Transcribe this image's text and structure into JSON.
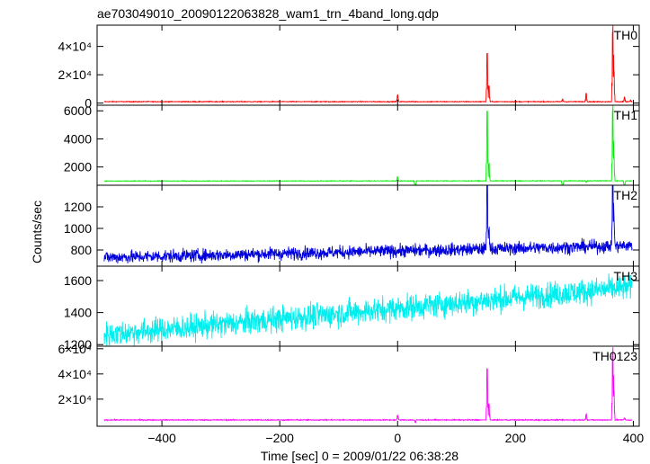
{
  "chart_data": {
    "type": "line",
    "title": "ae703049010_20090122063828_wam1_trn_4band_long.qdp",
    "xlabel": "Time [sec] 0 = 2009/01/22 06:38:28",
    "ylabel": "Counts/sec",
    "xlim": [
      -510,
      410
    ],
    "x_ticks": [
      {
        "value": -400,
        "label": "−400"
      },
      {
        "value": -200,
        "label": "−200"
      },
      {
        "value": 0,
        "label": "0"
      },
      {
        "value": 200,
        "label": "200"
      },
      {
        "value": 400,
        "label": "400"
      }
    ],
    "panels": [
      {
        "name": "TH0",
        "color": "#ff0000",
        "ylim": [
          -1500,
          55000
        ],
        "yticks": [
          {
            "value": 0,
            "label": "0"
          },
          {
            "value": 20000,
            "label": "2×10⁴"
          },
          {
            "value": 40000,
            "label": "4×10⁴"
          }
        ],
        "baseline": 1000,
        "trend": 0,
        "noise": 150,
        "peaks": [
          [
            0,
            5500
          ],
          [
            30,
            900
          ],
          [
            152,
            35000
          ],
          [
            155,
            12000
          ],
          [
            280,
            2500
          ],
          [
            320,
            6500
          ],
          [
            365,
            50000
          ],
          [
            367,
            22000
          ],
          [
            385,
            4000
          ],
          [
            395,
            2000
          ]
        ]
      },
      {
        "name": "TH1",
        "color": "#00ee00",
        "ylim": [
          700,
          6400
        ],
        "yticks": [
          {
            "value": 2000,
            "label": "2000"
          },
          {
            "value": 4000,
            "label": "4000"
          },
          {
            "value": 6000,
            "label": "6000"
          }
        ],
        "baseline": 1000,
        "trend": 15,
        "noise": 12,
        "peaks": [
          [
            0,
            1280
          ],
          [
            30,
            110
          ],
          [
            152,
            5950
          ],
          [
            155,
            2200
          ],
          [
            280,
            200
          ],
          [
            320,
            900
          ],
          [
            365,
            5950
          ],
          [
            367,
            2600
          ],
          [
            385,
            300
          ]
        ]
      },
      {
        "name": "TH2",
        "color": "#0000dd",
        "ylim": [
          650,
          1400
        ],
        "yticks": [
          {
            "value": 800,
            "label": "800"
          },
          {
            "value": 1000,
            "label": "1000"
          },
          {
            "value": 1200,
            "label": "1200"
          }
        ],
        "baseline": 730,
        "trend": 110,
        "noise": 30,
        "peaks": [
          [
            152,
            1400
          ],
          [
            155,
            950
          ],
          [
            365,
            1400
          ],
          [
            367,
            1000
          ]
        ]
      },
      {
        "name": "TH3",
        "color": "#00eeee",
        "ylim": [
          1190,
          1690
        ],
        "yticks": [
          {
            "value": 1200,
            "label": "1200"
          },
          {
            "value": 1400,
            "label": "1400"
          },
          {
            "value": 1600,
            "label": "1600"
          }
        ],
        "baseline": 1260,
        "trend": 300,
        "noise": 40,
        "peaks": []
      },
      {
        "name": "TH0123",
        "color": "#ff00ff",
        "ylim": [
          -1500,
          62000
        ],
        "yticks": [
          {
            "value": 20000,
            "label": "2×10⁴"
          },
          {
            "value": 40000,
            "label": "4×10⁴"
          },
          {
            "value": 60000,
            "label": "6×10⁴"
          }
        ],
        "baseline": 3500,
        "trend": 0,
        "noise": 200,
        "peaks": [
          [
            0,
            7000
          ],
          [
            30,
            1500
          ],
          [
            152,
            44000
          ],
          [
            155,
            16000
          ],
          [
            280,
            3500
          ],
          [
            320,
            8000
          ],
          [
            365,
            56000
          ],
          [
            367,
            26000
          ],
          [
            385,
            5000
          ],
          [
            395,
            3000
          ]
        ]
      }
    ]
  }
}
